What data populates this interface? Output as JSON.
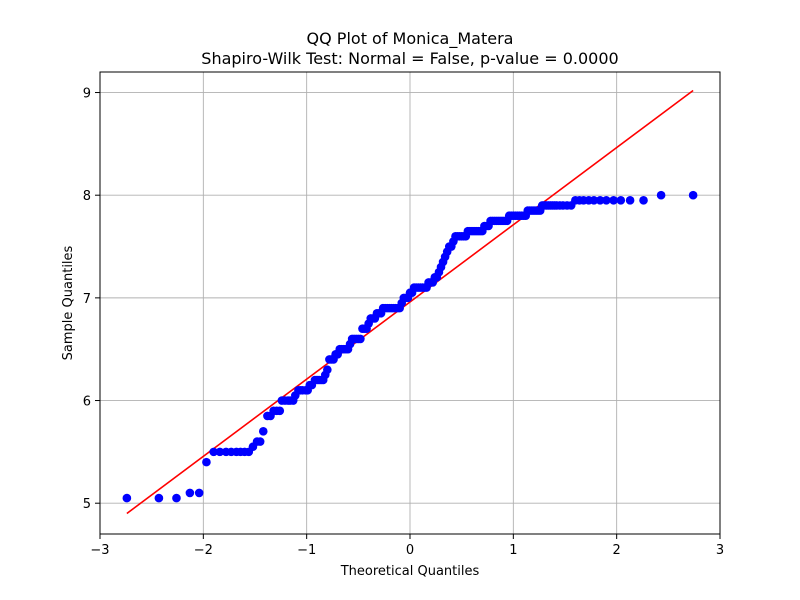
{
  "chart_data": {
    "type": "scatter",
    "title": "QQ Plot of Monica_Matera",
    "subtitle": "Shapiro-Wilk Test: Normal = False, p-value = 0.0000",
    "xlabel": "Theoretical Quantiles",
    "ylabel": "Sample Quantiles",
    "xlim": [
      -3,
      3
    ],
    "ylim": [
      4.7,
      9.2
    ],
    "xticks": [
      -3,
      -2,
      -1,
      0,
      1,
      2,
      3
    ],
    "xtick_labels": [
      "−3",
      "−2",
      "−1",
      "0",
      "1",
      "2",
      "3"
    ],
    "yticks": [
      5,
      6,
      7,
      8,
      9
    ],
    "ytick_labels": [
      "5",
      "6",
      "7",
      "8",
      "9"
    ],
    "grid": true,
    "colors": {
      "points": "#0000ff",
      "line": "#ff0000"
    },
    "reference_line": {
      "x": [
        -2.74,
        2.74
      ],
      "y": [
        4.9,
        9.02
      ]
    },
    "series": [
      {
        "points": [
          [
            -2.74,
            5.05
          ],
          [
            -2.43,
            5.05
          ],
          [
            -2.26,
            5.05
          ],
          [
            -2.13,
            5.1
          ],
          [
            -2.04,
            5.1
          ],
          [
            -1.97,
            5.4
          ],
          [
            -1.9,
            5.5
          ],
          [
            -1.84,
            5.5
          ],
          [
            -1.78,
            5.5
          ],
          [
            -1.73,
            5.5
          ],
          [
            -1.68,
            5.5
          ],
          [
            -1.64,
            5.5
          ],
          [
            -1.6,
            5.5
          ],
          [
            -1.56,
            5.5
          ],
          [
            -1.52,
            5.55
          ],
          [
            -1.48,
            5.6
          ],
          [
            -1.45,
            5.6
          ],
          [
            -1.42,
            5.7
          ],
          [
            -1.38,
            5.85
          ],
          [
            -1.35,
            5.85
          ],
          [
            -1.32,
            5.9
          ],
          [
            -1.29,
            5.9
          ],
          [
            -1.26,
            5.9
          ],
          [
            -1.24,
            6.0
          ],
          [
            -1.21,
            6.0
          ],
          [
            -1.18,
            6.0
          ],
          [
            -1.16,
            6.0
          ],
          [
            -1.13,
            6.0
          ],
          [
            -1.11,
            6.05
          ],
          [
            -1.08,
            6.1
          ],
          [
            -1.06,
            6.1
          ],
          [
            -1.04,
            6.1
          ],
          [
            -1.01,
            6.1
          ],
          [
            -0.99,
            6.1
          ],
          [
            -0.97,
            6.15
          ],
          [
            -0.95,
            6.15
          ],
          [
            -0.92,
            6.2
          ],
          [
            -0.9,
            6.2
          ],
          [
            -0.88,
            6.2
          ],
          [
            -0.86,
            6.2
          ],
          [
            -0.84,
            6.2
          ],
          [
            -0.82,
            6.25
          ],
          [
            -0.8,
            6.3
          ],
          [
            -0.78,
            6.4
          ],
          [
            -0.76,
            6.4
          ],
          [
            -0.74,
            6.4
          ],
          [
            -0.72,
            6.45
          ],
          [
            -0.7,
            6.45
          ],
          [
            -0.68,
            6.5
          ],
          [
            -0.66,
            6.5
          ],
          [
            -0.64,
            6.5
          ],
          [
            -0.62,
            6.5
          ],
          [
            -0.6,
            6.5
          ],
          [
            -0.58,
            6.55
          ],
          [
            -0.56,
            6.6
          ],
          [
            -0.54,
            6.6
          ],
          [
            -0.52,
            6.6
          ],
          [
            -0.5,
            6.6
          ],
          [
            -0.48,
            6.6
          ],
          [
            -0.46,
            6.7
          ],
          [
            -0.44,
            6.7
          ],
          [
            -0.42,
            6.7
          ],
          [
            -0.4,
            6.75
          ],
          [
            -0.38,
            6.8
          ],
          [
            -0.36,
            6.8
          ],
          [
            -0.34,
            6.8
          ],
          [
            -0.32,
            6.85
          ],
          [
            -0.3,
            6.85
          ],
          [
            -0.28,
            6.85
          ],
          [
            -0.26,
            6.9
          ],
          [
            -0.24,
            6.9
          ],
          [
            -0.22,
            6.9
          ],
          [
            -0.2,
            6.9
          ],
          [
            -0.18,
            6.9
          ],
          [
            -0.16,
            6.9
          ],
          [
            -0.14,
            6.9
          ],
          [
            -0.12,
            6.9
          ],
          [
            -0.1,
            6.9
          ],
          [
            -0.08,
            6.95
          ],
          [
            -0.06,
            7.0
          ],
          [
            -0.04,
            7.0
          ],
          [
            -0.02,
            7.0
          ],
          [
            0.0,
            7.05
          ],
          [
            0.02,
            7.05
          ],
          [
            0.04,
            7.1
          ],
          [
            0.06,
            7.1
          ],
          [
            0.08,
            7.1
          ],
          [
            0.1,
            7.1
          ],
          [
            0.12,
            7.1
          ],
          [
            0.14,
            7.1
          ],
          [
            0.16,
            7.1
          ],
          [
            0.18,
            7.15
          ],
          [
            0.2,
            7.15
          ],
          [
            0.22,
            7.15
          ],
          [
            0.24,
            7.2
          ],
          [
            0.26,
            7.2
          ],
          [
            0.28,
            7.25
          ],
          [
            0.3,
            7.3
          ],
          [
            0.32,
            7.35
          ],
          [
            0.34,
            7.4
          ],
          [
            0.36,
            7.45
          ],
          [
            0.38,
            7.5
          ],
          [
            0.4,
            7.5
          ],
          [
            0.42,
            7.55
          ],
          [
            0.44,
            7.6
          ],
          [
            0.46,
            7.6
          ],
          [
            0.48,
            7.6
          ],
          [
            0.5,
            7.6
          ],
          [
            0.52,
            7.6
          ],
          [
            0.54,
            7.6
          ],
          [
            0.56,
            7.65
          ],
          [
            0.58,
            7.65
          ],
          [
            0.6,
            7.65
          ],
          [
            0.62,
            7.65
          ],
          [
            0.64,
            7.65
          ],
          [
            0.66,
            7.65
          ],
          [
            0.68,
            7.65
          ],
          [
            0.7,
            7.65
          ],
          [
            0.72,
            7.7
          ],
          [
            0.74,
            7.7
          ],
          [
            0.76,
            7.7
          ],
          [
            0.78,
            7.75
          ],
          [
            0.8,
            7.75
          ],
          [
            0.82,
            7.75
          ],
          [
            0.84,
            7.75
          ],
          [
            0.86,
            7.75
          ],
          [
            0.88,
            7.75
          ],
          [
            0.9,
            7.75
          ],
          [
            0.92,
            7.75
          ],
          [
            0.94,
            7.75
          ],
          [
            0.96,
            7.8
          ],
          [
            0.98,
            7.8
          ],
          [
            1.0,
            7.8
          ],
          [
            1.02,
            7.8
          ],
          [
            1.04,
            7.8
          ],
          [
            1.06,
            7.8
          ],
          [
            1.08,
            7.8
          ],
          [
            1.1,
            7.8
          ],
          [
            1.12,
            7.8
          ],
          [
            1.14,
            7.85
          ],
          [
            1.16,
            7.85
          ],
          [
            1.18,
            7.85
          ],
          [
            1.2,
            7.85
          ],
          [
            1.22,
            7.85
          ],
          [
            1.24,
            7.85
          ],
          [
            1.26,
            7.85
          ],
          [
            1.28,
            7.9
          ],
          [
            1.3,
            7.9
          ],
          [
            1.32,
            7.9
          ],
          [
            1.34,
            7.9
          ],
          [
            1.36,
            7.9
          ],
          [
            1.38,
            7.9
          ],
          [
            1.4,
            7.9
          ],
          [
            1.42,
            7.9
          ],
          [
            1.45,
            7.9
          ],
          [
            1.48,
            7.9
          ],
          [
            1.52,
            7.9
          ],
          [
            1.56,
            7.9
          ],
          [
            1.6,
            7.95
          ],
          [
            1.64,
            7.95
          ],
          [
            1.68,
            7.95
          ],
          [
            1.73,
            7.95
          ],
          [
            1.78,
            7.95
          ],
          [
            1.84,
            7.95
          ],
          [
            1.9,
            7.95
          ],
          [
            1.97,
            7.95
          ],
          [
            2.04,
            7.95
          ],
          [
            2.13,
            7.95
          ],
          [
            2.26,
            7.95
          ],
          [
            2.43,
            8.0
          ],
          [
            2.74,
            8.0
          ]
        ]
      }
    ]
  }
}
